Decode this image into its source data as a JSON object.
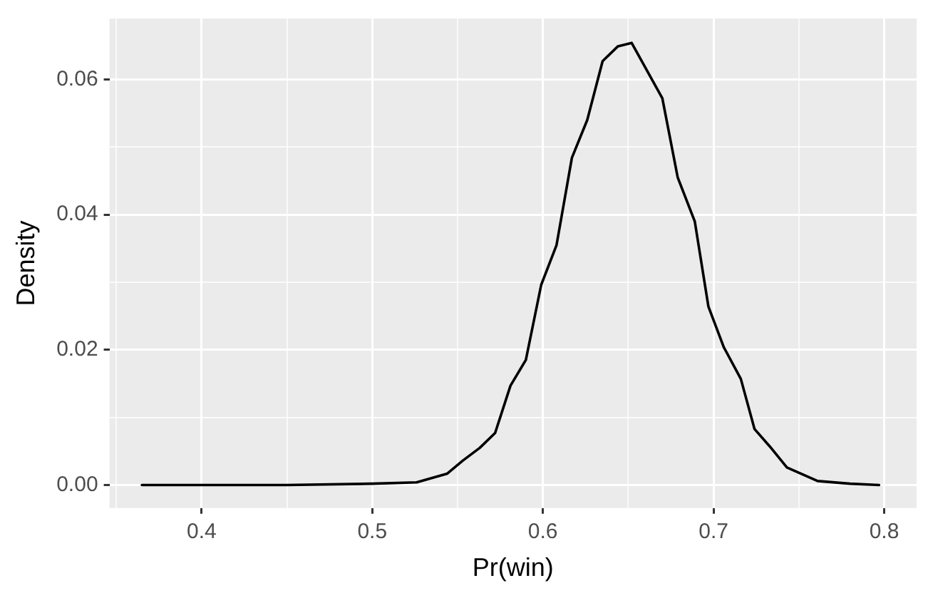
{
  "chart_data": {
    "type": "line",
    "xlabel": "Pr(win)",
    "ylabel": "Density",
    "grid": true,
    "legend": false,
    "marker": "none",
    "line_style": "solid",
    "xlim": [
      0.346,
      0.819
    ],
    "ylim": [
      -0.0034,
      0.069
    ],
    "xticks": [
      {
        "value": 0.35,
        "label": null
      },
      0.4,
      {
        "value": 0.45,
        "label": null
      },
      0.5,
      {
        "value": 0.55,
        "label": null
      },
      0.6,
      {
        "value": 0.65,
        "label": null
      },
      0.7,
      {
        "value": 0.75,
        "label": null
      },
      0.8
    ],
    "yticks": [
      {
        "value": 0,
        "label": "0.00"
      },
      {
        "value": 0.01,
        "label": null
      },
      {
        "value": 0.02,
        "label": "0.02"
      },
      {
        "value": 0.03,
        "label": null
      },
      {
        "value": 0.04,
        "label": "0.04"
      },
      {
        "value": 0.05,
        "label": null
      },
      {
        "value": 0.06,
        "label": "0.06"
      }
    ],
    "series": [
      {
        "color": "#000000",
        "x": [
          0.365,
          0.45,
          0.5,
          0.526,
          0.544,
          0.553,
          0.563,
          0.572,
          0.581,
          0.59,
          0.599,
          0.608,
          0.617,
          0.626,
          0.635,
          0.644,
          0.652,
          0.67,
          0.679,
          0.689,
          0.697,
          0.706,
          0.716,
          0.724,
          0.733,
          0.743,
          0.761,
          0.78,
          0.797
        ],
        "values": [
          0,
          0,
          0.0002,
          0.0004,
          0.0017,
          0.0036,
          0.0055,
          0.0077,
          0.0147,
          0.0185,
          0.0296,
          0.0355,
          0.0484,
          0.054,
          0.0627,
          0.0649,
          0.0654,
          0.0572,
          0.0455,
          0.039,
          0.0264,
          0.0204,
          0.0157,
          0.0083,
          0.0057,
          0.0026,
          0.0006,
          0.0002,
          0
        ]
      }
    ]
  }
}
